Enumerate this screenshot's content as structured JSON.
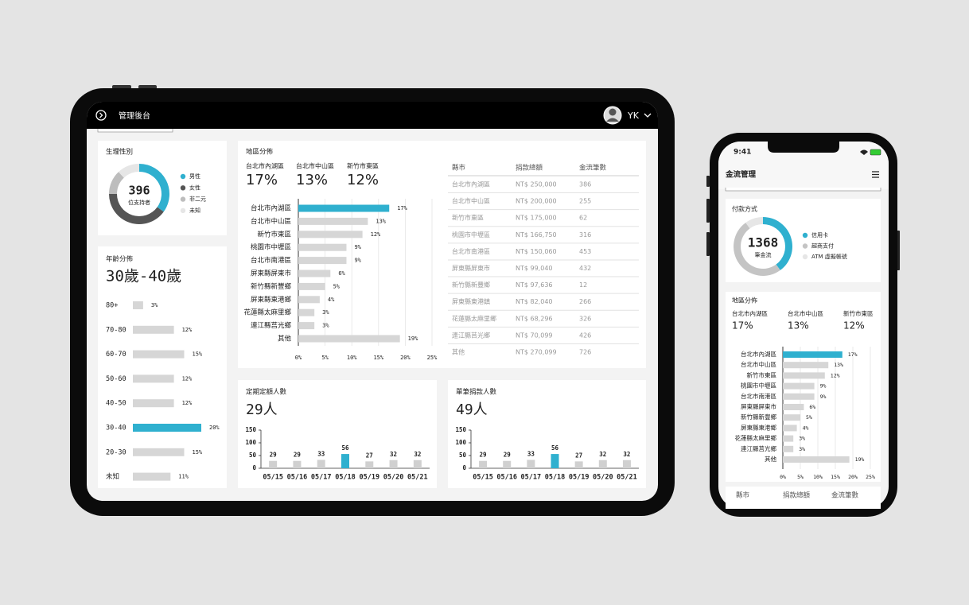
{
  "tablet": {
    "header": {
      "title": "管理後台",
      "user": "YK"
    },
    "gender": {
      "title": "生理性別",
      "total": 396,
      "total_label": "位支持者",
      "segments": [
        {
          "name": "男性",
          "color": "#2fb0cf",
          "value": 35
        },
        {
          "name": "女性",
          "color": "#555555",
          "value": 40
        },
        {
          "name": "非二元",
          "color": "#bdbdbd",
          "value": 13
        },
        {
          "name": "未知",
          "color": "#e6e6e6",
          "value": 12
        }
      ]
    },
    "age": {
      "title": "年齡分佈",
      "headline": "30歲-40歲",
      "categories": [
        "80+",
        "70-80",
        "60-70",
        "50-60",
        "40-50",
        "30-40",
        "20-30",
        "未知"
      ],
      "values": [
        3,
        12,
        15,
        12,
        12,
        20,
        15,
        11
      ],
      "value_labels": [
        "3%",
        "12%",
        "15%",
        "12%",
        "12%",
        "20%",
        "15%",
        "11%"
      ],
      "color": "#d6d6d6",
      "highlight_color": "#2fb0cf",
      "highlight_index": 5
    },
    "region": {
      "title": "地區分佈",
      "highlights": [
        {
          "label": "台北市內湖區",
          "value": "17%"
        },
        {
          "label": "台北市中山區",
          "value": "13%"
        },
        {
          "label": "新竹市東區",
          "value": "12%"
        }
      ],
      "chart": {
        "categories": [
          "台北市內湖區",
          "台北市中山區",
          "新竹市東區",
          "桃園市中壢區",
          "台北市南港區",
          "屏東縣屏東市",
          "新竹縣新豐鄉",
          "屏東縣東港鄉",
          "花蓮縣太麻里鄉",
          "連江縣莒光鄉",
          "其他"
        ],
        "values": [
          17,
          13,
          12,
          9,
          9,
          6,
          5,
          4,
          3,
          3,
          19
        ],
        "value_labels": [
          "17%",
          "13%",
          "12%",
          "9%",
          "9%",
          "6%",
          "5%",
          "4%",
          "3%",
          "3%",
          "19%"
        ],
        "xlim": [
          0,
          25
        ],
        "xticks": [
          {
            "value": 0,
            "label": "0%"
          },
          {
            "value": 5,
            "label": "5%"
          },
          {
            "value": 10,
            "label": "10%"
          },
          {
            "value": 15,
            "label": "15%"
          },
          {
            "value": 20,
            "label": "20%"
          },
          {
            "value": 25,
            "label": "25%"
          }
        ],
        "color": "#d6d6d6",
        "highlight_color": "#2fb0cf",
        "highlight_index": 0
      },
      "table": {
        "headers": [
          "縣市",
          "捐款總額",
          "金流筆數"
        ],
        "rows": [
          [
            "台北市內湖區",
            "NT$ 250,000",
            "386"
          ],
          [
            "台北市中山區",
            "NT$ 200,000",
            "255"
          ],
          [
            "新竹市東區",
            "NT$ 175,000",
            "62"
          ],
          [
            "桃園市中壢區",
            "NT$ 166,750",
            "316"
          ],
          [
            "台北市南港區",
            "NT$ 150,060",
            "453"
          ],
          [
            "屏東縣屏東市",
            "NT$ 99,040",
            "432"
          ],
          [
            "新竹縣新豐鄉",
            "NT$ 97,636",
            "12"
          ],
          [
            "屏東縣東港鎮",
            "NT$ 82,040",
            "266"
          ],
          [
            "花蓮縣太麻里鄉",
            "NT$ 68,296",
            "326"
          ],
          [
            "連江縣莒光鄉",
            "NT$ 70,099",
            "426"
          ],
          [
            "其他",
            "NT$ 270,099",
            "726"
          ]
        ]
      }
    },
    "recurring": {
      "title": "定期定額人數",
      "headline": "29人",
      "x": [
        "05/15",
        "05/16",
        "05/17",
        "05/18",
        "05/19",
        "05/20",
        "05/21"
      ],
      "values": [
        29,
        29,
        33,
        56,
        27,
        32,
        32
      ],
      "ylim": [
        0,
        150
      ],
      "yticks": [
        0,
        50,
        100,
        150
      ],
      "color": "#d0d0d0",
      "highlight_color": "#2fb0cf",
      "highlight_index": 3
    },
    "single": {
      "title": "單筆捐款人數",
      "headline": "49人",
      "x": [
        "05/15",
        "05/16",
        "05/17",
        "05/18",
        "05/19",
        "05/20",
        "05/21"
      ],
      "values": [
        29,
        29,
        33,
        56,
        27,
        32,
        32
      ],
      "ylim": [
        0,
        150
      ],
      "yticks": [
        0,
        50,
        100,
        150
      ],
      "color": "#d0d0d0",
      "highlight_color": "#2fb0cf",
      "highlight_index": 3
    }
  },
  "phone": {
    "status": {
      "time": "9:41"
    },
    "header": {
      "title": "金流管理"
    },
    "payment": {
      "title": "付款方式",
      "total": 1368,
      "total_label": "筆金流",
      "segments": [
        {
          "name": "信用卡",
          "color": "#2fb0cf",
          "value": 40
        },
        {
          "name": "超商支付",
          "color": "#c4c4c4",
          "value": 50
        },
        {
          "name": "ATM 虛擬帳號",
          "color": "#e6e6e6",
          "value": 10
        }
      ]
    },
    "region": {
      "title": "地區分佈",
      "highlights": [
        {
          "label": "台北市內湖區",
          "value": "17%"
        },
        {
          "label": "台北市中山區",
          "value": "13%"
        },
        {
          "label": "新竹市東區",
          "value": "12%"
        }
      ],
      "chart": {
        "categories": [
          "台北市內湖區",
          "台北市中山區",
          "新竹市東區",
          "桃園市中壢區",
          "台北市南港區",
          "屏東縣屏東市",
          "新竹縣新豐鄉",
          "屏東縣東港鄉",
          "花蓮縣太麻里鄉",
          "連江縣莒光鄉",
          "其他"
        ],
        "values": [
          17,
          13,
          12,
          9,
          9,
          6,
          5,
          4,
          3,
          3,
          19
        ],
        "value_labels": [
          "17%",
          "13%",
          "12%",
          "9%",
          "9%",
          "6%",
          "5%",
          "4%",
          "3%",
          "3%",
          "19%"
        ],
        "xlim": [
          0,
          25
        ],
        "xticks": [
          {
            "value": 0,
            "label": "0%"
          },
          {
            "value": 5,
            "label": "5%"
          },
          {
            "value": 10,
            "label": "10%"
          },
          {
            "value": 15,
            "label": "15%"
          },
          {
            "value": 20,
            "label": "20%"
          },
          {
            "value": 25,
            "label": "25%"
          }
        ],
        "color": "#d6d6d6",
        "highlight_color": "#2fb0cf",
        "highlight_index": 0
      }
    },
    "table": {
      "headers": [
        "縣市",
        "捐款總額",
        "金流筆數"
      ]
    }
  }
}
